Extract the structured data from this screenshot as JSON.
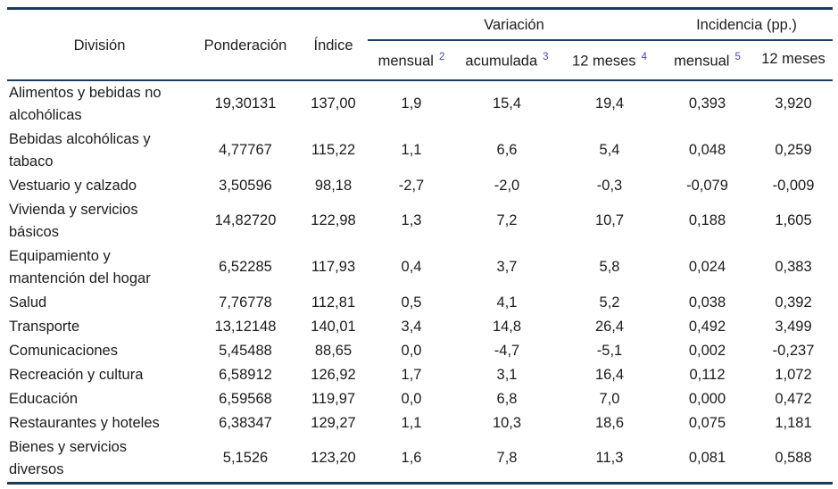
{
  "colors": {
    "rule_navy": "#1c3a5c",
    "footnote_link_blue": "#4343c9",
    "text": "#1c1c1c"
  },
  "table": {
    "headers": {
      "division": "División",
      "ponderacion": "Ponderación",
      "indice": "Índice",
      "variacion_group": "Variación",
      "incidencia_group": "Incidencia (pp.)",
      "var_mensual": "mensual",
      "var_mensual_fn": "2",
      "var_acumulada": "acumulada",
      "var_acumulada_fn": "3",
      "var_12m": "12 meses",
      "var_12m_fn": "4",
      "inc_mensual": "mensual",
      "inc_mensual_fn": "5",
      "inc_12m": "12 meses"
    },
    "rows": [
      {
        "division": "Alimentos y bebidas no alcohólicas",
        "ponderacion": "19,30131",
        "indice": "137,00",
        "var_mensual": "1,9",
        "var_acumulada": "15,4",
        "var_12m": "19,4",
        "inc_mensual": "0,393",
        "inc_12m": "3,920"
      },
      {
        "division": "Bebidas alcohólicas y tabaco",
        "ponderacion": "4,77767",
        "indice": "115,22",
        "var_mensual": "1,1",
        "var_acumulada": "6,6",
        "var_12m": "5,4",
        "inc_mensual": "0,048",
        "inc_12m": "0,259"
      },
      {
        "division": "Vestuario y calzado",
        "ponderacion": "3,50596",
        "indice": "98,18",
        "var_mensual": "-2,7",
        "var_acumulada": "-2,0",
        "var_12m": "-0,3",
        "inc_mensual": "-0,079",
        "inc_12m": "-0,009"
      },
      {
        "division": "Vivienda y servicios básicos",
        "ponderacion": "14,82720",
        "indice": "122,98",
        "var_mensual": "1,3",
        "var_acumulada": "7,2",
        "var_12m": "10,7",
        "inc_mensual": "0,188",
        "inc_12m": "1,605"
      },
      {
        "division": "Equipamiento y mantención del hogar",
        "ponderacion": "6,52285",
        "indice": "117,93",
        "var_mensual": "0,4",
        "var_acumulada": "3,7",
        "var_12m": "5,8",
        "inc_mensual": "0,024",
        "inc_12m": "0,383"
      },
      {
        "division": "Salud",
        "ponderacion": "7,76778",
        "indice": "112,81",
        "var_mensual": "0,5",
        "var_acumulada": "4,1",
        "var_12m": "5,2",
        "inc_mensual": "0,038",
        "inc_12m": "0,392"
      },
      {
        "division": "Transporte",
        "ponderacion": "13,12148",
        "indice": "140,01",
        "var_mensual": "3,4",
        "var_acumulada": "14,8",
        "var_12m": "26,4",
        "inc_mensual": "0,492",
        "inc_12m": "3,499"
      },
      {
        "division": "Comunicaciones",
        "ponderacion": "5,45488",
        "indice": "88,65",
        "var_mensual": "0,0",
        "var_acumulada": "-4,7",
        "var_12m": "-5,1",
        "inc_mensual": "0,002",
        "inc_12m": "-0,237"
      },
      {
        "division": "Recreación y cultura",
        "ponderacion": "6,58912",
        "indice": "126,92",
        "var_mensual": "1,7",
        "var_acumulada": "3,1",
        "var_12m": "16,4",
        "inc_mensual": "0,112",
        "inc_12m": "1,072"
      },
      {
        "division": "Educación",
        "ponderacion": "6,59568",
        "indice": "119,97",
        "var_mensual": "0,0",
        "var_acumulada": "6,8",
        "var_12m": "7,0",
        "inc_mensual": "0,000",
        "inc_12m": "0,472"
      },
      {
        "division": "Restaurantes y hoteles",
        "ponderacion": "6,38347",
        "indice": "129,27",
        "var_mensual": "1,1",
        "var_acumulada": "10,3",
        "var_12m": "18,6",
        "inc_mensual": "0,075",
        "inc_12m": "1,181"
      },
      {
        "division": "Bienes y servicios diversos",
        "ponderacion": "5,1526",
        "indice": "123,20",
        "var_mensual": "1,6",
        "var_acumulada": "7,8",
        "var_12m": "11,3",
        "inc_mensual": "0,081",
        "inc_12m": "0,588"
      }
    ]
  }
}
